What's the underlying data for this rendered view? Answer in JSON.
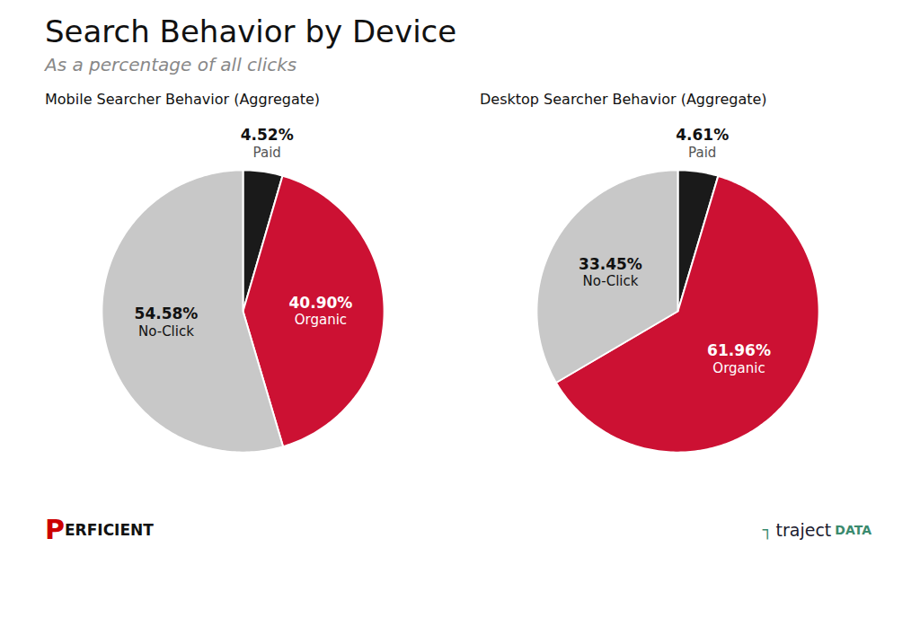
{
  "title": "Search Behavior by Device",
  "subtitle": "As a percentage of all clicks",
  "annotations": [
    {
      "text": "P",
      "color": "#cc0000"
    },
    {
      "text": "ERFICIENT",
      "color": "#111111"
    },
    {
      "text": "┐",
      "color": "#3a8a6e"
    },
    {
      "text": "traject",
      "color": "#1a1a2e"
    },
    {
      "text": "DATA",
      "color": "#3a8a6e"
    }
  ],
  "chart_data": [
    {
      "type": "pie",
      "title": "Mobile Searcher Behavior (Aggregate)",
      "categories": [
        "Paid",
        "Organic",
        "No-Click"
      ],
      "values": [
        4.52,
        40.9,
        54.58
      ],
      "value_labels": [
        "4.52%",
        "40.90%",
        "54.58%"
      ],
      "colors": [
        "#1a1a1a",
        "#cc1133",
        "#c8c8c8"
      ],
      "data_labels": true
    },
    {
      "type": "pie",
      "title": "Desktop Searcher Behavior (Aggregate)",
      "categories": [
        "Paid",
        "Organic",
        "No-Click"
      ],
      "values": [
        4.61,
        61.96,
        33.45
      ],
      "value_labels": [
        "4.61%",
        "61.96%",
        "33.45%"
      ],
      "colors": [
        "#1a1a1a",
        "#cc1133",
        "#c8c8c8"
      ],
      "data_labels": true
    }
  ]
}
